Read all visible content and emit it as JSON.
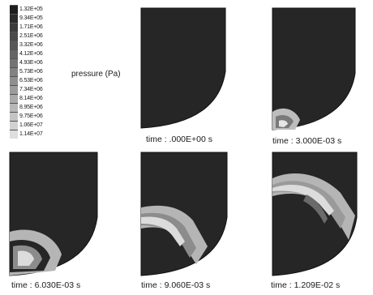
{
  "legend": {
    "title": "pressure (Pa)",
    "entries": [
      {
        "label": "1.32E+05",
        "color": "#1e1e1e"
      },
      {
        "label": "9.34E+05",
        "color": "#2b2b2b"
      },
      {
        "label": "1.71E+06",
        "color": "#3a3a3a"
      },
      {
        "label": "2.51E+06",
        "color": "#494949"
      },
      {
        "label": "3.32E+06",
        "color": "#585858"
      },
      {
        "label": "4.12E+06",
        "color": "#666666"
      },
      {
        "label": "4.93E+06",
        "color": "#747474"
      },
      {
        "label": "5.73E+06",
        "color": "#828282"
      },
      {
        "label": "6.53E+06",
        "color": "#8f8f8f"
      },
      {
        "label": "7.34E+06",
        "color": "#9c9c9c"
      },
      {
        "label": "8.14E+06",
        "color": "#aaaaaa"
      },
      {
        "label": "8.95E+06",
        "color": "#b7b7b7"
      },
      {
        "label": "9.75E+06",
        "color": "#c4c4c4"
      },
      {
        "label": "1.06E+07",
        "color": "#d1d1d1"
      },
      {
        "label": "1.14E+07",
        "color": "#dedede"
      }
    ]
  },
  "panels": [
    {
      "caption": "time : .000E+00 s"
    },
    {
      "caption": "time : 3.000E-03 s"
    },
    {
      "caption": "time : 6.030E-03 s"
    },
    {
      "caption": "time : 9.060E-03 s"
    },
    {
      "caption": "time : 1.209E-02 s"
    }
  ]
}
